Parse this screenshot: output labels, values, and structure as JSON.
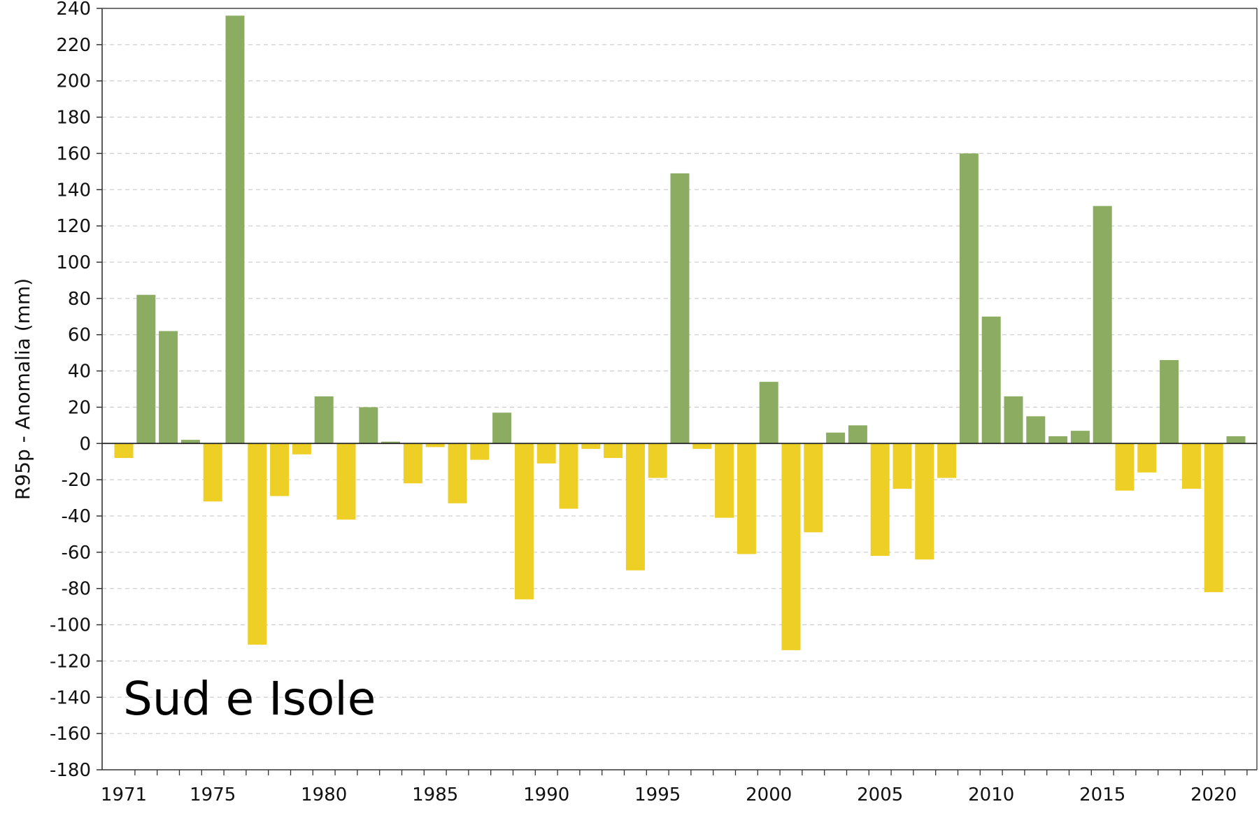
{
  "chart_data": {
    "type": "bar",
    "title": "",
    "xlabel": "",
    "ylabel": "R95p - Anomalia (mm)",
    "annotation": "Sud e Isole",
    "ylim": [
      -180,
      240
    ],
    "yticks": [
      240,
      220,
      200,
      180,
      160,
      140,
      120,
      100,
      80,
      60,
      40,
      20,
      0,
      -20,
      -40,
      -60,
      -80,
      -100,
      -120,
      -140,
      -160,
      -180
    ],
    "xticks": [
      1971,
      1975,
      1980,
      1985,
      1990,
      1995,
      2000,
      2005,
      2010,
      2015,
      2020
    ],
    "grid": "horizontal-dashed",
    "colors": {
      "positive": "#8cad61",
      "negative": "#edcf25"
    },
    "x": [
      1971,
      1972,
      1973,
      1974,
      1975,
      1976,
      1977,
      1978,
      1979,
      1980,
      1981,
      1982,
      1983,
      1984,
      1985,
      1986,
      1987,
      1988,
      1989,
      1990,
      1991,
      1992,
      1993,
      1994,
      1995,
      1996,
      1997,
      1998,
      1999,
      2000,
      2001,
      2002,
      2003,
      2004,
      2005,
      2006,
      2007,
      2008,
      2009,
      2010,
      2011,
      2012,
      2013,
      2014,
      2015,
      2016,
      2017,
      2018,
      2019,
      2020,
      2021
    ],
    "values": [
      -8,
      82,
      62,
      2,
      -32,
      236,
      -111,
      -29,
      -6,
      26,
      -42,
      20,
      1,
      -22,
      -2,
      -33,
      -9,
      17,
      -86,
      -11,
      -36,
      -3,
      -8,
      -70,
      -19,
      149,
      -3,
      -41,
      -61,
      34,
      -114,
      -49,
      6,
      10,
      -62,
      -25,
      -64,
      -19,
      160,
      70,
      26,
      15,
      4,
      7,
      131,
      -26,
      -16,
      46,
      -25,
      -82,
      4
    ]
  }
}
